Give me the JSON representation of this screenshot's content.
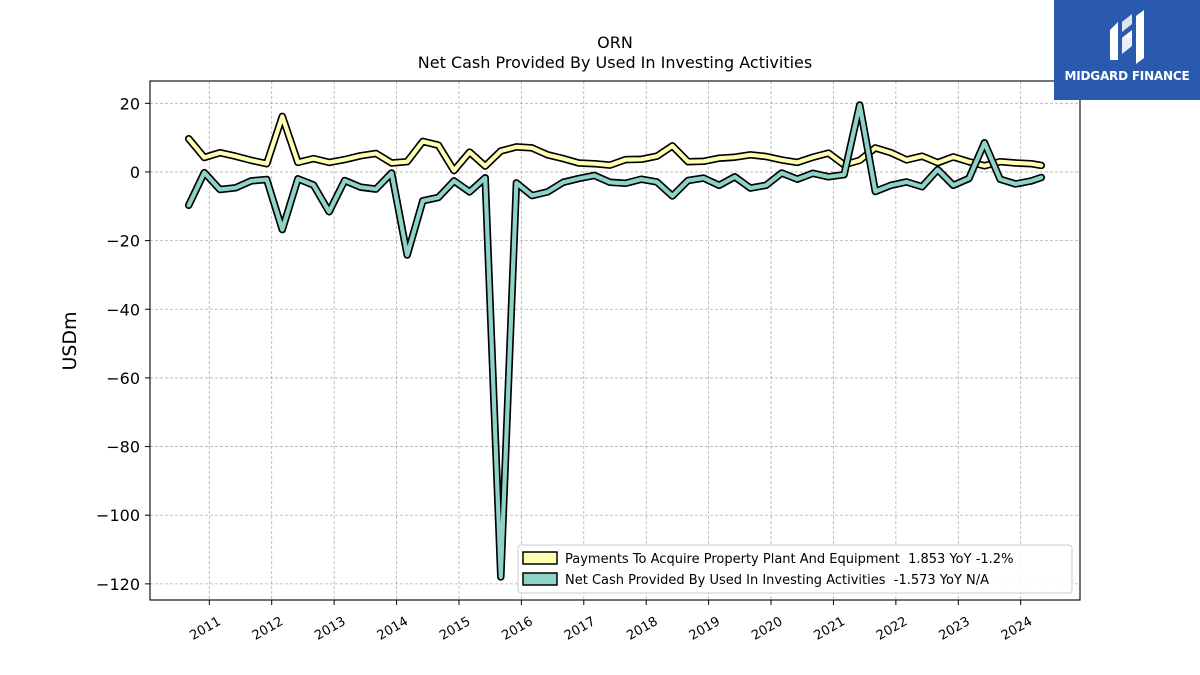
{
  "logo": {
    "text": "MIDGARD FINANCE"
  },
  "chart_data": {
    "type": "line",
    "title": "ORN",
    "subtitle": "Net Cash Provided By Used In Investing Activities",
    "ylabel": "USDm",
    "xlabel": "",
    "ylim": [
      -124.7,
      26.5
    ],
    "xlim": [
      2010.05,
      2024.95
    ],
    "yticks": [
      20,
      0,
      -20,
      -40,
      -60,
      -80,
      -100,
      -120
    ],
    "ytick_labels": [
      "20",
      "0",
      "−20",
      "−40",
      "−60",
      "−80",
      "−100",
      "−120"
    ],
    "xticks": [
      2011,
      2012,
      2013,
      2014,
      2015,
      2016,
      2017,
      2018,
      2019,
      2020,
      2021,
      2022,
      2023,
      2024
    ],
    "xtick_labels": [
      "2011",
      "2012",
      "2013",
      "2014",
      "2015",
      "2016",
      "2017",
      "2018",
      "2019",
      "2020",
      "2021",
      "2022",
      "2023",
      "2024"
    ],
    "grid": true,
    "legend_position": "lower-right",
    "series": [
      {
        "name": "Payments To Acquire Property Plant And Equipment  1.853 YoY -1.2%",
        "color": "#ffffb3",
        "x": [
          2010.67,
          2010.92,
          2011.17,
          2011.42,
          2011.67,
          2011.92,
          2012.17,
          2012.42,
          2012.67,
          2012.92,
          2013.17,
          2013.42,
          2013.67,
          2013.92,
          2014.17,
          2014.42,
          2014.67,
          2014.92,
          2015.17,
          2015.42,
          2015.67,
          2015.92,
          2016.17,
          2016.42,
          2016.67,
          2016.92,
          2017.17,
          2017.42,
          2017.67,
          2017.92,
          2018.17,
          2018.42,
          2018.67,
          2018.92,
          2019.17,
          2019.42,
          2019.67,
          2019.92,
          2020.17,
          2020.42,
          2020.67,
          2020.92,
          2021.17,
          2021.42,
          2021.67,
          2021.92,
          2022.17,
          2022.42,
          2022.67,
          2022.92,
          2023.17,
          2023.42,
          2023.67,
          2023.92,
          2024.17,
          2024.33
        ],
        "y": [
          9.7,
          4.2,
          5.6,
          4.6,
          3.4,
          2.4,
          16.2,
          2.8,
          3.9,
          2.8,
          3.6,
          4.7,
          5.4,
          2.6,
          3.0,
          8.9,
          7.8,
          0.4,
          5.8,
          1.7,
          6.1,
          7.3,
          7.0,
          5.0,
          3.9,
          2.6,
          2.4,
          2.0,
          3.6,
          3.7,
          4.6,
          7.6,
          3.0,
          3.1,
          4.0,
          4.3,
          5.0,
          4.5,
          3.5,
          2.8,
          4.3,
          5.5,
          2.1,
          3.4,
          7.0,
          5.6,
          3.5,
          4.6,
          2.7,
          4.4,
          3.0,
          1.8,
          3.0,
          2.6,
          2.4,
          1.9
        ]
      },
      {
        "name": "Net Cash Provided By Used In Investing Activities  -1.573 YoY N/A",
        "color": "#8dd3c7",
        "x": [
          2010.67,
          2010.92,
          2011.17,
          2011.42,
          2011.67,
          2011.92,
          2012.17,
          2012.42,
          2012.67,
          2012.92,
          2013.17,
          2013.42,
          2013.67,
          2013.92,
          2014.17,
          2014.42,
          2014.67,
          2014.92,
          2015.17,
          2015.42,
          2015.67,
          2015.92,
          2016.17,
          2016.42,
          2016.67,
          2016.92,
          2017.17,
          2017.42,
          2017.67,
          2017.92,
          2018.17,
          2018.42,
          2018.67,
          2018.92,
          2019.17,
          2019.42,
          2019.67,
          2019.92,
          2020.17,
          2020.42,
          2020.67,
          2020.92,
          2021.17,
          2021.42,
          2021.67,
          2021.92,
          2022.17,
          2022.42,
          2022.67,
          2022.92,
          2023.17,
          2023.42,
          2023.67,
          2023.92,
          2024.17,
          2024.33
        ],
        "y": [
          -9.7,
          -0.2,
          -5.1,
          -4.6,
          -2.6,
          -2.2,
          -16.8,
          -2.0,
          -3.8,
          -11.6,
          -2.5,
          -4.4,
          -5.0,
          -0.3,
          -24.2,
          -8.4,
          -7.4,
          -2.6,
          -5.8,
          -1.7,
          -118.0,
          -3.2,
          -6.9,
          -5.8,
          -3.0,
          -1.9,
          -1.0,
          -3.0,
          -3.3,
          -2.1,
          -2.9,
          -7.0,
          -2.5,
          -1.8,
          -3.9,
          -1.4,
          -4.7,
          -3.9,
          -0.3,
          -2.1,
          -0.4,
          -1.4,
          -0.8,
          19.5,
          -5.7,
          -3.9,
          -2.9,
          -4.3,
          0.7,
          -3.9,
          -1.9,
          8.5,
          -2.1,
          -3.5,
          -2.6,
          -1.6
        ]
      }
    ]
  }
}
